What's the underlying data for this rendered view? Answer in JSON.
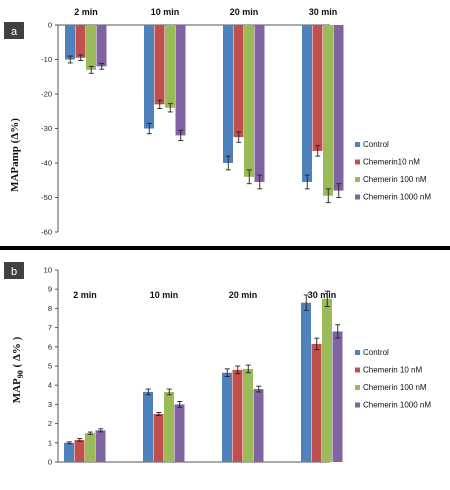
{
  "colors": {
    "control": "#4f81bd",
    "chemerin10": "#c0504d",
    "chemerin100": "#9bbb59",
    "chemerin1000": "#8064a2",
    "panel_label_bg": "#404040",
    "separator": "#000000"
  },
  "chart_data": [
    {
      "type": "bar",
      "panel_label": "a",
      "ylabel": "MAPamp (Δ%)",
      "ylim": [
        -60,
        0
      ],
      "yticks": [
        0,
        -10,
        -20,
        -30,
        -40,
        -50,
        -60
      ],
      "categories": [
        "2 min",
        "10 min",
        "20 min",
        "30 min"
      ],
      "category_labels_position": "top",
      "legend_position": "right",
      "grid": false,
      "series": [
        {
          "name": "Control",
          "values": [
            -10,
            -30,
            -40,
            -45.5
          ],
          "errors": [
            1,
            1.5,
            2,
            2
          ]
        },
        {
          "name": "Chemerin10 nM",
          "values": [
            -9.5,
            -23,
            -32.5,
            -36.5
          ],
          "errors": [
            0.8,
            1.2,
            1.5,
            1.5
          ]
        },
        {
          "name": "Chemerin 100 nM",
          "values": [
            -13,
            -24,
            -44,
            -49.5
          ],
          "errors": [
            1,
            1.2,
            2,
            2
          ]
        },
        {
          "name": "Chemerin 1000 nM",
          "values": [
            -12,
            -32,
            -45.5,
            -48
          ],
          "errors": [
            0.8,
            1.5,
            2,
            2
          ]
        }
      ]
    },
    {
      "type": "bar",
      "panel_label": "b",
      "ylabel_main": "MAP",
      "ylabel_sub": "90",
      "ylabel_unit": " ( Δ% )",
      "ylim": [
        0,
        10
      ],
      "yticks": [
        0,
        1,
        2,
        3,
        4,
        5,
        6,
        7,
        8,
        9,
        10
      ],
      "categories": [
        "2 min",
        "10 min",
        "20 min",
        "30 min"
      ],
      "category_labels_position": "top",
      "legend_position": "right",
      "grid": false,
      "series": [
        {
          "name": "Control",
          "values": [
            1.0,
            3.65,
            4.65,
            8.3
          ],
          "errors": [
            0.05,
            0.15,
            0.2,
            0.4
          ]
        },
        {
          "name": "Chemerin 10 nM",
          "values": [
            1.15,
            2.5,
            4.8,
            6.15
          ],
          "errors": [
            0.07,
            0.08,
            0.2,
            0.3
          ]
        },
        {
          "name": "Chemerin 100 nM",
          "values": [
            1.5,
            3.65,
            4.85,
            8.5
          ],
          "errors": [
            0.06,
            0.15,
            0.2,
            0.4
          ]
        },
        {
          "name": "Chemerin 1000 nM",
          "values": [
            1.65,
            3.0,
            3.8,
            6.8
          ],
          "errors": [
            0.08,
            0.15,
            0.15,
            0.35
          ]
        }
      ]
    }
  ]
}
